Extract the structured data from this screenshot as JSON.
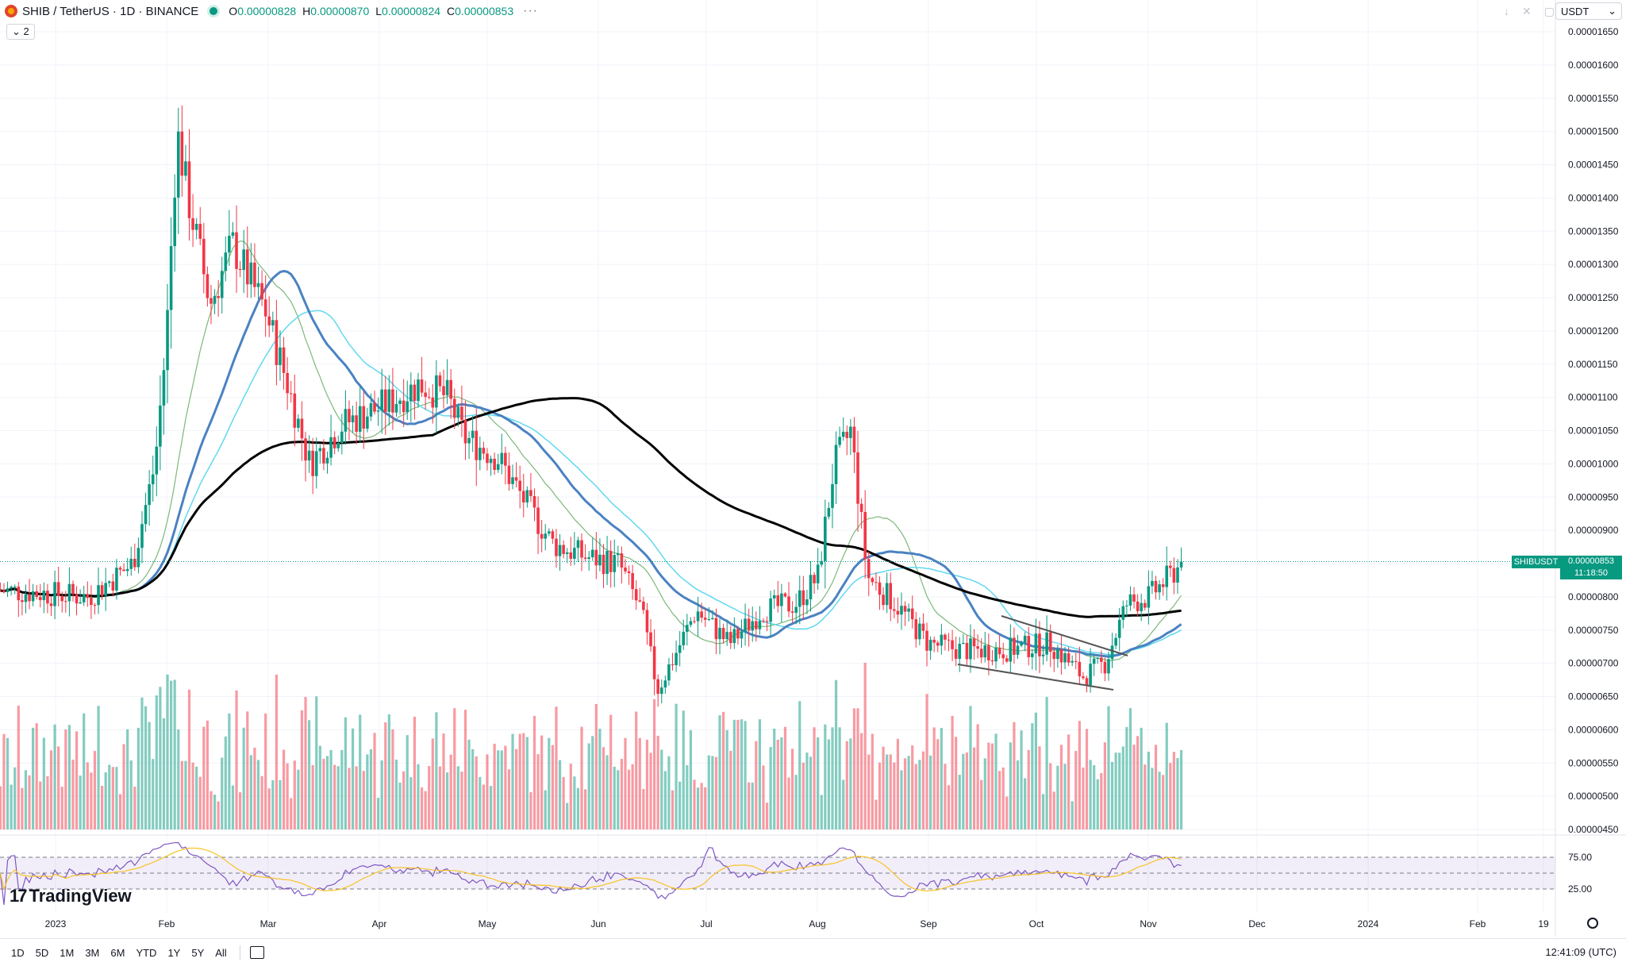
{
  "header": {
    "symbol": "SHIB / TetherUS · 1D · BINANCE",
    "ohlc": [
      {
        "label": "O",
        "value": "0.00000828"
      },
      {
        "label": "H",
        "value": "0.00000870"
      },
      {
        "label": "L",
        "value": "0.00000824"
      },
      {
        "label": "C",
        "value": "0.00000853"
      }
    ],
    "more": "···",
    "collapse_label": "2"
  },
  "toolbar": {
    "currency": "USDT"
  },
  "price_marker": {
    "ticker": "SHIBUSDT",
    "price": "0.00000853",
    "countdown": "11:18:50"
  },
  "brand": "TradingView",
  "footer": {
    "ranges": [
      "1D",
      "5D",
      "1M",
      "3M",
      "6M",
      "YTD",
      "1Y",
      "5Y",
      "All"
    ],
    "time": "12:41:09 (UTC)"
  },
  "colors": {
    "up": "#089981",
    "down": "#f23645",
    "ma200": "#000000",
    "ema_blue": "#4a82c2",
    "ma_cyan": "#61d8f0",
    "ma_green": "#7cb87a",
    "rsi": "#7e57c2"
  },
  "chart_data": {
    "type": "candlestick",
    "symbol": "SHIBUSDT",
    "interval": "1D",
    "x_ticks": [
      "2023",
      "Feb",
      "Mar",
      "Apr",
      "May",
      "Jun",
      "Jul",
      "Aug",
      "Sep",
      "Oct",
      "Nov",
      "Dec",
      "2024",
      "Feb",
      "19"
    ],
    "y_ticks": [
      "0.00001650",
      "0.00001600",
      "0.00001550",
      "0.00001500",
      "0.00001450",
      "0.00001400",
      "0.00001350",
      "0.00001300",
      "0.00001250",
      "0.00001200",
      "0.00001150",
      "0.00001100",
      "0.00001050",
      "0.00001000",
      "0.00000950",
      "0.00000900",
      "0.00000850",
      "0.00000800",
      "0.00000750",
      "0.00000700",
      "0.00000650",
      "0.00000600",
      "0.00000550",
      "0.00000500",
      "0.00000450"
    ],
    "y_range": [
      4.5e-06,
      1.65e-05
    ],
    "last_price": 8.53e-06,
    "close_anchors": [
      {
        "month": -0.5,
        "close": 8.1e-06
      },
      {
        "month": 0.3,
        "close": 8e-06
      },
      {
        "month": 0.7,
        "close": 8.5e-06
      },
      {
        "month": 0.9,
        "close": 1e-05
      },
      {
        "month": 1.0,
        "close": 1.18e-05
      },
      {
        "month": 1.1,
        "close": 1.5e-05
      },
      {
        "month": 1.2,
        "close": 1.4e-05
      },
      {
        "month": 1.4,
        "close": 1.24e-05
      },
      {
        "month": 1.6,
        "close": 1.33e-05
      },
      {
        "month": 1.9,
        "close": 1.23e-05
      },
      {
        "month": 2.1,
        "close": 1.12e-05
      },
      {
        "month": 2.3,
        "close": 1e-05
      },
      {
        "month": 2.6,
        "close": 1.06e-05
      },
      {
        "month": 3.0,
        "close": 1.09e-05
      },
      {
        "month": 3.3,
        "close": 1.12e-05
      },
      {
        "month": 3.55,
        "close": 1.1e-05
      },
      {
        "month": 3.7,
        "close": 1.04e-05
      },
      {
        "month": 4.0,
        "close": 1.01e-05
      },
      {
        "month": 4.3,
        "close": 9.3e-06
      },
      {
        "month": 4.5,
        "close": 8.8e-06
      },
      {
        "month": 4.8,
        "close": 8.6e-06
      },
      {
        "month": 5.1,
        "close": 8.5e-06
      },
      {
        "month": 5.3,
        "close": 7.8e-06
      },
      {
        "month": 5.45,
        "close": 6.6e-06
      },
      {
        "month": 5.6,
        "close": 7.1e-06
      },
      {
        "month": 5.8,
        "close": 7.8e-06
      },
      {
        "month": 6.1,
        "close": 7.3e-06
      },
      {
        "month": 6.4,
        "close": 7.8e-06
      },
      {
        "month": 6.7,
        "close": 7.9e-06
      },
      {
        "month": 6.9,
        "close": 8.3e-06
      },
      {
        "month": 7.05,
        "close": 1e-05
      },
      {
        "month": 7.2,
        "close": 1.05e-05
      },
      {
        "month": 7.35,
        "close": 8.3e-06
      },
      {
        "month": 7.6,
        "close": 7.9e-06
      },
      {
        "month": 7.9,
        "close": 7.3e-06
      },
      {
        "month": 8.2,
        "close": 7.2e-06
      },
      {
        "month": 8.6,
        "close": 7.2e-06
      },
      {
        "month": 9.0,
        "close": 7.3e-06
      },
      {
        "month": 9.3,
        "close": 6.8e-06
      },
      {
        "month": 9.5,
        "close": 7e-06
      },
      {
        "month": 9.7,
        "close": 7.9e-06
      },
      {
        "month": 9.9,
        "close": 8e-06
      },
      {
        "month": 10.2,
        "close": 8.5e-06
      }
    ],
    "indicators": [
      "MA 200",
      "EMA",
      "MA",
      "MA",
      "RSI 14"
    ],
    "rsi_levels": [
      "75.00",
      "25.00"
    ],
    "pattern": "falling wedge (Sep–Oct)"
  }
}
